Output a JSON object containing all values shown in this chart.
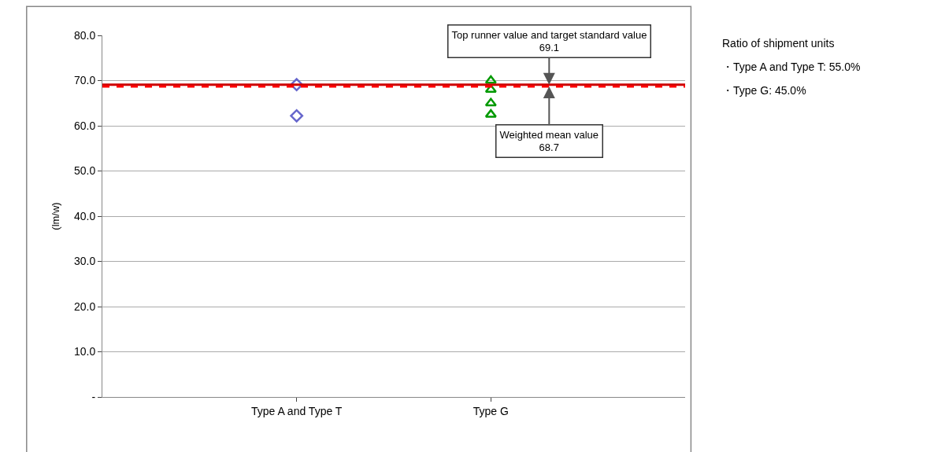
{
  "chart_data": {
    "type": "scatter",
    "ylabel": "(lm/w)",
    "categories": [
      null,
      "Type A and Type T",
      "Type G",
      null
    ],
    "ylim": [
      0,
      80
    ],
    "yticks": [
      {
        "value": 0,
        "label": "-"
      },
      {
        "value": 10,
        "label": "10.0"
      },
      {
        "value": 20,
        "label": "20.0"
      },
      {
        "value": 30,
        "label": "30.0"
      },
      {
        "value": 40,
        "label": "40.0"
      },
      {
        "value": 50,
        "label": "50.0"
      },
      {
        "value": 60,
        "label": "60.0"
      },
      {
        "value": 70,
        "label": "70.0"
      },
      {
        "value": 80,
        "label": "80.0"
      }
    ],
    "grid": "y",
    "legend": false,
    "series": [
      {
        "color": "#6666cc",
        "marker": "diamond",
        "x": [
          "Type A and Type T",
          "Type A and Type T"
        ],
        "values": [
          69.1,
          62.2
        ]
      },
      {
        "color": "#009900",
        "marker": "triangle",
        "x": [
          "Type G",
          "Type G",
          "Type G",
          "Type G"
        ],
        "values": [
          70.0,
          68.0,
          65.0,
          62.5
        ]
      }
    ],
    "ref_lines": [
      {
        "axis": "y",
        "value": 69.1,
        "label": "Top runner value and target standard value\n69.1",
        "color": "#cc0000",
        "line_style": "solid"
      },
      {
        "axis": "y",
        "value": 68.7,
        "label": "Weighted mean value\n68.7",
        "color": "#ff0000",
        "line_style": "dashed"
      }
    ],
    "annotations": [
      "Ratio of shipment units",
      "・Type A and Type T: 55.0%",
      "・Type G: 45.0%"
    ]
  }
}
